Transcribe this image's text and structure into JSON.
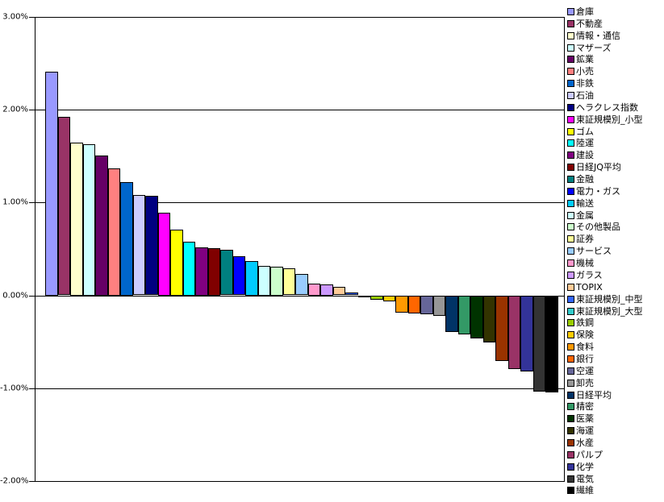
{
  "chart_data": {
    "type": "bar",
    "title": "",
    "xlabel": "",
    "ylabel": "",
    "ylim": [
      -2.0,
      3.0
    ],
    "grid": true,
    "legend_position": "right",
    "background_color": "#FFFFFF",
    "axis_color": "#000000",
    "y_ticks": [
      {
        "value": 3,
        "label": "3.00%"
      },
      {
        "value": 2,
        "label": "2.00%"
      },
      {
        "value": 1,
        "label": "1.00%"
      },
      {
        "value": 0,
        "label": "0.00%"
      },
      {
        "value": -1,
        "label": "-1.00%"
      },
      {
        "value": -2,
        "label": "-2.00%"
      }
    ],
    "gridline_values": [
      2,
      1,
      0,
      -1
    ],
    "series": [
      {
        "name": "倉庫",
        "value": 2.41,
        "color": "#9999FF"
      },
      {
        "name": "不動産",
        "value": 1.92,
        "color": "#993366"
      },
      {
        "name": "情報・通信",
        "value": 1.65,
        "color": "#FFFFCC"
      },
      {
        "name": "マザーズ",
        "value": 1.63,
        "color": "#CCFFFF"
      },
      {
        "name": "鉱業",
        "value": 1.51,
        "color": "#660066"
      },
      {
        "name": "小売",
        "value": 1.37,
        "color": "#FF8080"
      },
      {
        "name": "非鉄",
        "value": 1.22,
        "color": "#0066CC"
      },
      {
        "name": "石油",
        "value": 1.08,
        "color": "#CCCCFF"
      },
      {
        "name": "ヘラクレス指数",
        "value": 1.07,
        "color": "#000080"
      },
      {
        "name": "東証規模別_小型",
        "value": 0.89,
        "color": "#FF00FF"
      },
      {
        "name": "ゴム",
        "value": 0.71,
        "color": "#FFFF00"
      },
      {
        "name": "陸運",
        "value": 0.58,
        "color": "#00FFFF"
      },
      {
        "name": "建設",
        "value": 0.52,
        "color": "#800080"
      },
      {
        "name": "日経JQ平均",
        "value": 0.51,
        "color": "#800000"
      },
      {
        "name": "金融",
        "value": 0.49,
        "color": "#008080"
      },
      {
        "name": "電力・ガス",
        "value": 0.42,
        "color": "#0000FF"
      },
      {
        "name": "輸送",
        "value": 0.37,
        "color": "#00CCFF"
      },
      {
        "name": "金属",
        "value": 0.32,
        "color": "#CCFFFF"
      },
      {
        "name": "その他製品",
        "value": 0.31,
        "color": "#CCFFCC"
      },
      {
        "name": "証券",
        "value": 0.29,
        "color": "#FFFF99"
      },
      {
        "name": "サービス",
        "value": 0.23,
        "color": "#99CCFF"
      },
      {
        "name": "機械",
        "value": 0.13,
        "color": "#FF99CC"
      },
      {
        "name": "ガラス",
        "value": 0.12,
        "color": "#CC99FF"
      },
      {
        "name": "TOPIX",
        "value": 0.09,
        "color": "#FFCC99"
      },
      {
        "name": "東証規模別_中型",
        "value": 0.03,
        "color": "#3366FF"
      },
      {
        "name": "東証規模別_大型",
        "value": -0.01,
        "color": "#33CCCC"
      },
      {
        "name": "鉄鋼",
        "value": -0.04,
        "color": "#99CC00"
      },
      {
        "name": "保険",
        "value": -0.06,
        "color": "#FFCC00"
      },
      {
        "name": "食料",
        "value": -0.18,
        "color": "#FF9900"
      },
      {
        "name": "銀行",
        "value": -0.19,
        "color": "#FF6600"
      },
      {
        "name": "空運",
        "value": -0.2,
        "color": "#666699"
      },
      {
        "name": "卸売",
        "value": -0.22,
        "color": "#969696"
      },
      {
        "name": "日経平均",
        "value": -0.39,
        "color": "#003366"
      },
      {
        "name": "精密",
        "value": -0.42,
        "color": "#339966"
      },
      {
        "name": "医薬",
        "value": -0.46,
        "color": "#003300"
      },
      {
        "name": "海運",
        "value": -0.5,
        "color": "#333300"
      },
      {
        "name": "水産",
        "value": -0.7,
        "color": "#993300"
      },
      {
        "name": "パルプ",
        "value": -0.79,
        "color": "#993366"
      },
      {
        "name": "化学",
        "value": -0.82,
        "color": "#333399"
      },
      {
        "name": "電気",
        "value": -1.03,
        "color": "#333333"
      },
      {
        "name": "繊維",
        "value": -1.04,
        "color": "#000000"
      }
    ]
  }
}
